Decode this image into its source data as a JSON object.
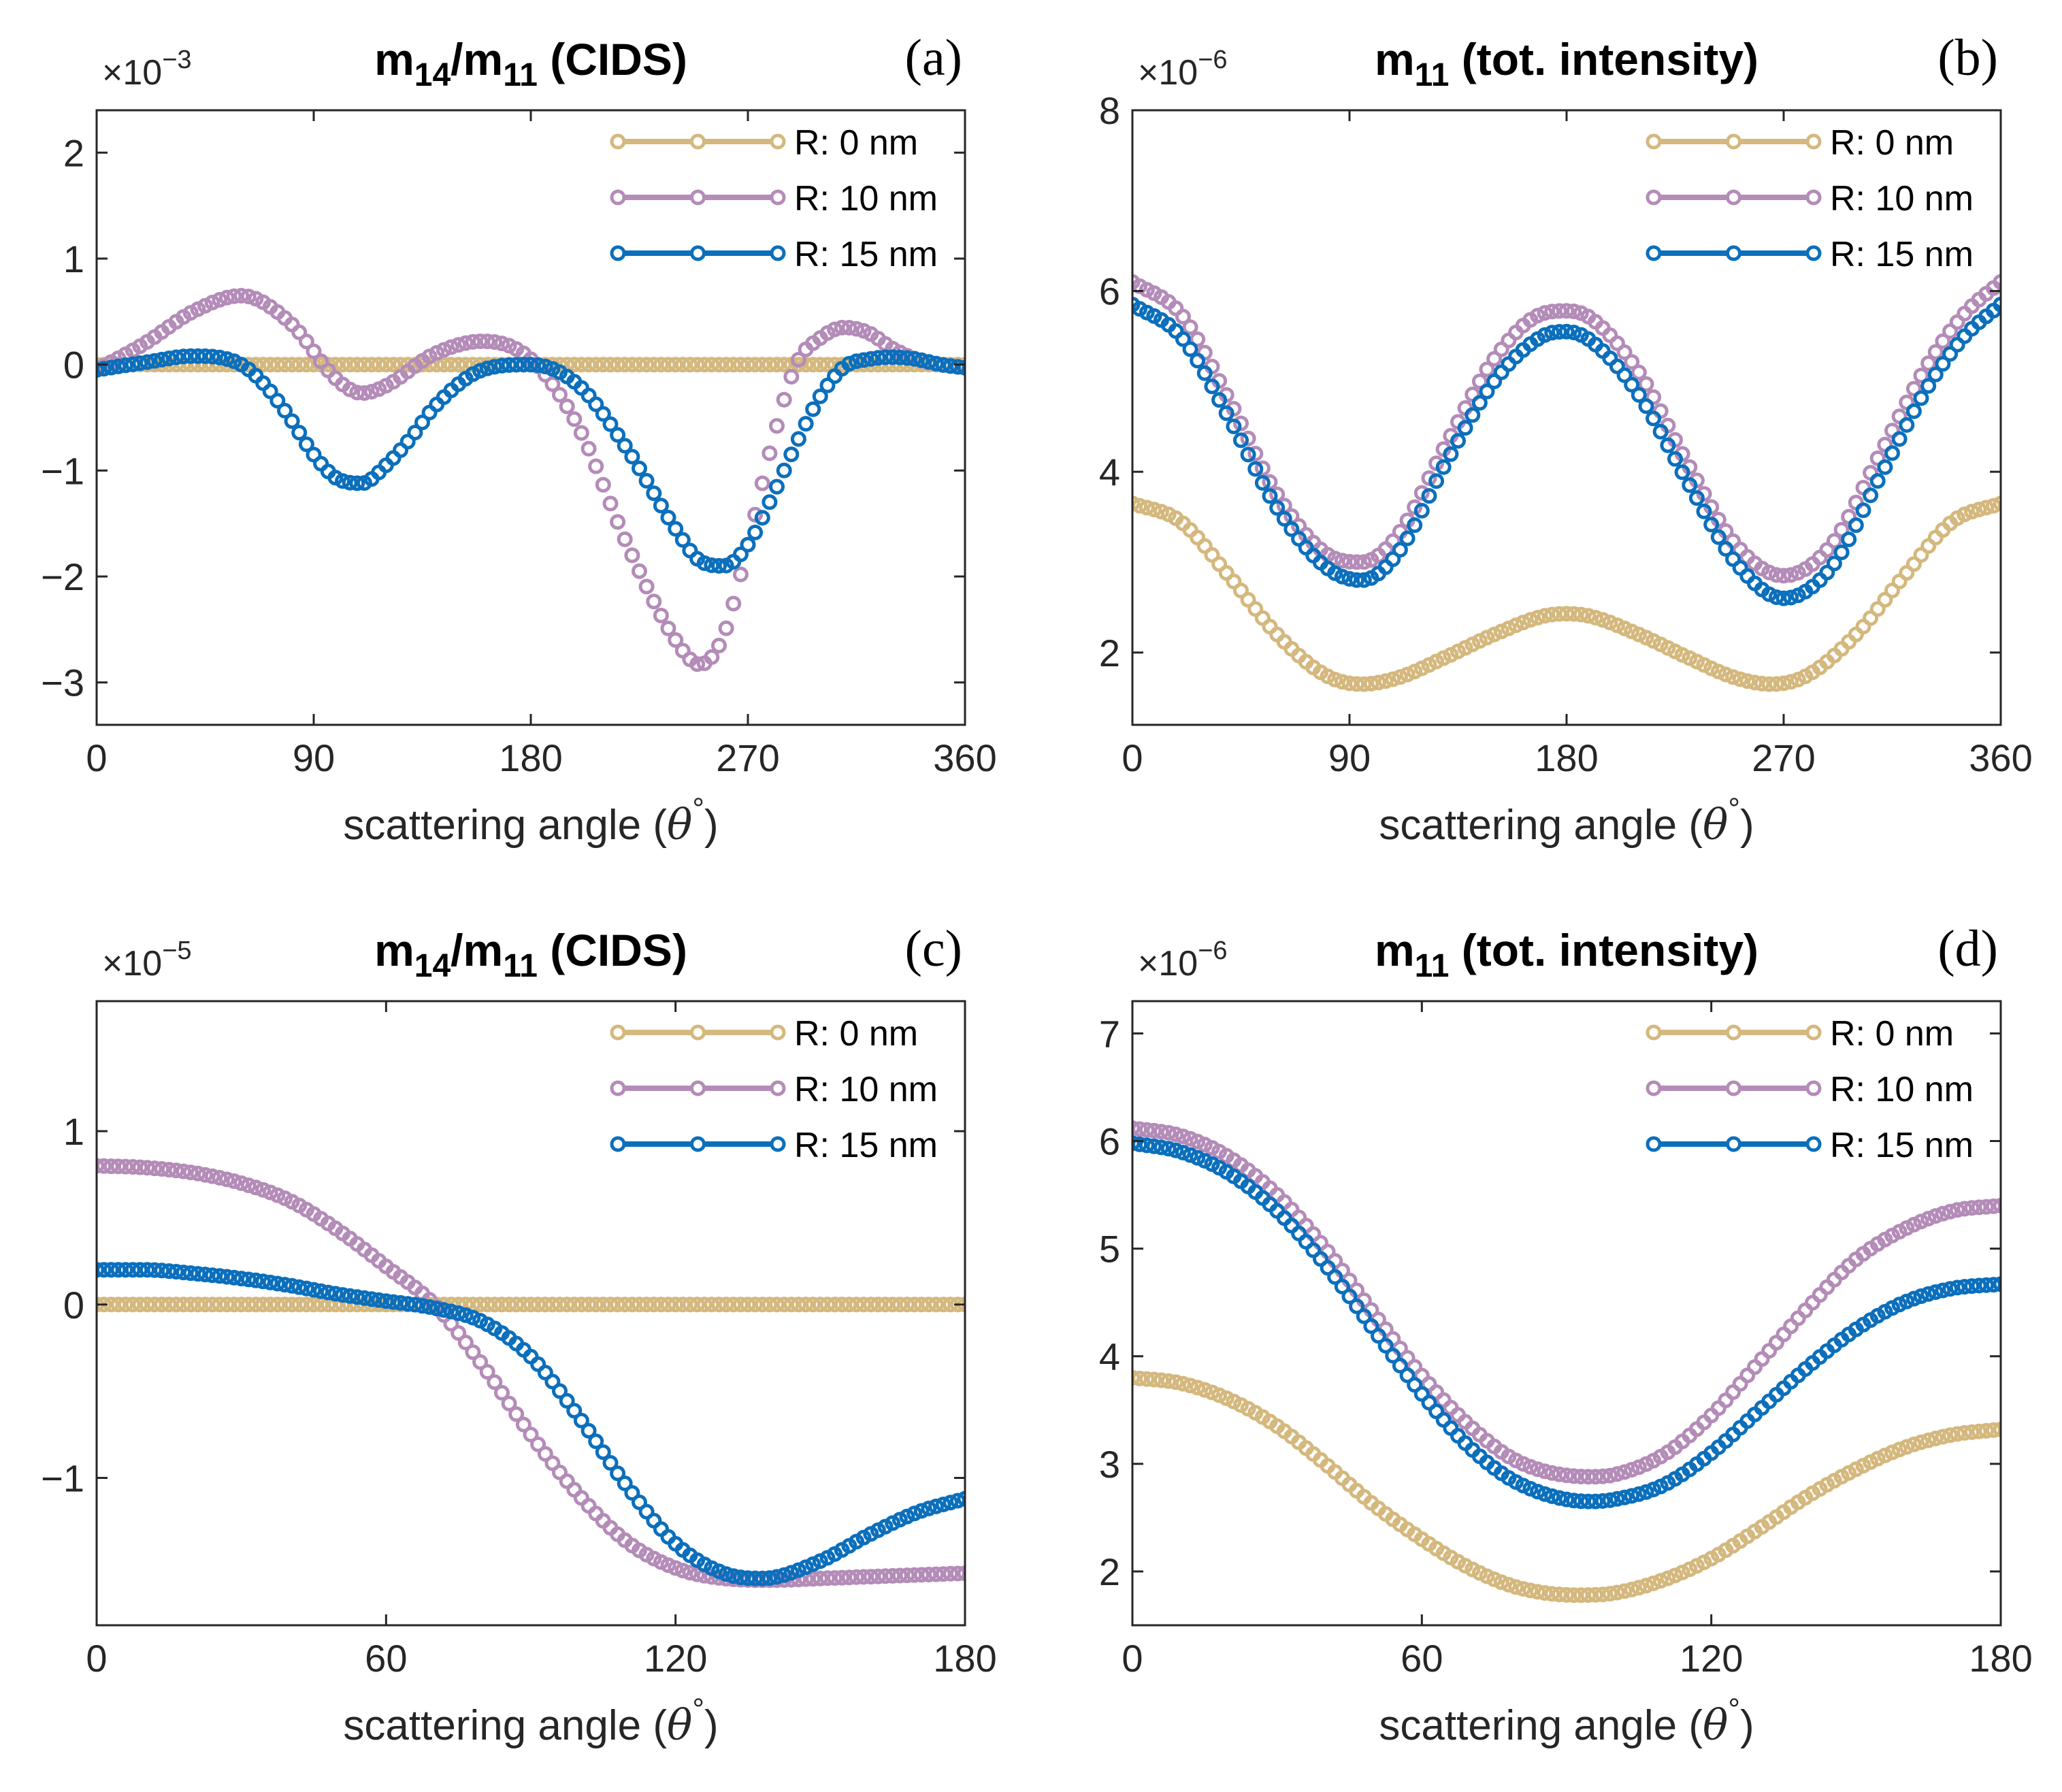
{
  "chart_data": [
    {
      "type": "line",
      "panel_label": "(a)",
      "title": {
        "base": "m",
        "sub1": "14",
        "mid": "/m",
        "sub2": "11",
        "suffix": " (CIDS)"
      },
      "xlabel": {
        "text": "scattering angle (",
        "symbol": "θ",
        "degree": "°",
        "close": ")"
      },
      "ylabel": "",
      "exponent": {
        "times": "×10",
        "power": "−3"
      },
      "xlim": [
        0,
        360
      ],
      "ylim": [
        -3.4,
        2.4
      ],
      "xticks": [
        0,
        90,
        180,
        270,
        360
      ],
      "xtick_labels": [
        "0",
        "90",
        "180",
        "270",
        "360"
      ],
      "yticks": [
        -3,
        -2,
        -1,
        0,
        1,
        2
      ],
      "ytick_labels": [
        "−3",
        "−2",
        "−1",
        "0",
        "1",
        "2"
      ],
      "marker_count": 121,
      "legend": {
        "position": "top-right"
      },
      "series": [
        {
          "name": "R: 0 nm",
          "color": "#d4b87e",
          "x": [
            0,
            360
          ],
          "y": [
            0,
            0
          ]
        },
        {
          "name": "R: 10 nm",
          "color": "#b48cb8",
          "x": [
            0,
            20,
            40,
            60,
            80,
            100,
            110,
            120,
            140,
            160,
            180,
            200,
            220,
            240,
            250,
            260,
            270,
            280,
            290,
            300,
            310,
            320,
            330,
            340,
            350,
            360
          ],
          "y": [
            -0.05,
            0.2,
            0.5,
            0.65,
            0.4,
            -0.15,
            -0.27,
            -0.2,
            0.1,
            0.22,
            0.05,
            -0.6,
            -1.7,
            -2.6,
            -2.83,
            -2.55,
            -1.7,
            -0.75,
            0.0,
            0.25,
            0.35,
            0.3,
            0.15,
            0.05,
            0.0,
            -0.03
          ]
        },
        {
          "name": "R: 15 nm",
          "color": "#0b6fbc",
          "x": [
            0,
            20,
            40,
            60,
            70,
            80,
            90,
            100,
            110,
            120,
            130,
            140,
            160,
            180,
            200,
            220,
            240,
            250,
            260,
            270,
            280,
            290,
            300,
            310,
            320,
            330,
            340,
            350,
            360
          ],
          "y": [
            -0.05,
            0.02,
            0.08,
            0.0,
            -0.2,
            -0.5,
            -0.85,
            -1.08,
            -1.12,
            -0.95,
            -0.7,
            -0.4,
            -0.05,
            0.0,
            -0.2,
            -0.8,
            -1.55,
            -1.85,
            -1.9,
            -1.7,
            -1.25,
            -0.75,
            -0.3,
            -0.02,
            0.05,
            0.07,
            0.05,
            0.0,
            -0.03
          ]
        }
      ]
    },
    {
      "type": "line",
      "panel_label": "(b)",
      "title": {
        "base": "m",
        "sub1": "11",
        "mid": "",
        "sub2": "",
        "suffix": " (tot. intensity)"
      },
      "xlabel": {
        "text": "scattering angle (",
        "symbol": "θ",
        "degree": "°",
        "close": ")"
      },
      "ylabel": "",
      "exponent": {
        "times": "×10",
        "power": "−6"
      },
      "xlim": [
        0,
        360
      ],
      "ylim": [
        1.2,
        8.0
      ],
      "xticks": [
        0,
        90,
        180,
        270,
        360
      ],
      "xtick_labels": [
        "0",
        "90",
        "180",
        "270",
        "360"
      ],
      "yticks": [
        2,
        4,
        6,
        8
      ],
      "ytick_labels": [
        "2",
        "4",
        "6",
        "8"
      ],
      "marker_count": 121,
      "legend": {
        "position": "top-right"
      },
      "series": [
        {
          "name": "R: 0 nm",
          "color": "#d4b87e",
          "x": [
            0,
            20,
            40,
            60,
            80,
            95,
            110,
            130,
            150,
            170,
            180,
            190,
            210,
            230,
            250,
            265,
            280,
            300,
            320,
            340,
            360
          ],
          "y": [
            3.65,
            3.45,
            2.85,
            2.2,
            1.75,
            1.65,
            1.72,
            1.95,
            2.2,
            2.4,
            2.43,
            2.4,
            2.2,
            1.95,
            1.72,
            1.65,
            1.75,
            2.2,
            2.85,
            3.45,
            3.65
          ]
        },
        {
          "name": "R: 10 nm",
          "color": "#b48cb8",
          "x": [
            0,
            20,
            40,
            60,
            80,
            95,
            110,
            130,
            150,
            170,
            180,
            190,
            210,
            230,
            250,
            270,
            290,
            310,
            330,
            345,
            360
          ],
          "y": [
            6.1,
            5.75,
            4.8,
            3.75,
            3.1,
            3.0,
            3.3,
            4.3,
            5.25,
            5.75,
            5.78,
            5.7,
            5.1,
            4.1,
            3.2,
            2.85,
            3.2,
            4.2,
            5.2,
            5.75,
            6.1
          ]
        },
        {
          "name": "R: 15 nm",
          "color": "#0b6fbc",
          "x": [
            0,
            20,
            40,
            60,
            80,
            95,
            110,
            130,
            150,
            170,
            180,
            190,
            210,
            230,
            250,
            270,
            290,
            310,
            330,
            345,
            360
          ],
          "y": [
            5.85,
            5.5,
            4.6,
            3.6,
            2.95,
            2.8,
            3.1,
            4.1,
            5.0,
            5.5,
            5.55,
            5.45,
            4.85,
            3.9,
            3.0,
            2.6,
            2.95,
            3.95,
            4.95,
            5.5,
            5.85
          ]
        }
      ]
    },
    {
      "type": "line",
      "panel_label": "(c)",
      "title": {
        "base": "m",
        "sub1": "14",
        "mid": "/m",
        "sub2": "11",
        "suffix": " (CIDS)"
      },
      "xlabel": {
        "text": "scattering angle (",
        "symbol": "θ",
        "degree": "°",
        "close": ")"
      },
      "ylabel": "",
      "exponent": {
        "times": "×10",
        "power": "−5"
      },
      "xlim": [
        0,
        180
      ],
      "ylim": [
        -1.85,
        1.75
      ],
      "xticks": [
        0,
        60,
        120,
        180
      ],
      "xtick_labels": [
        "0",
        "60",
        "120",
        "180"
      ],
      "yticks": [
        -1,
        0,
        1
      ],
      "ytick_labels": [
        "−1",
        "0",
        "1"
      ],
      "marker_count": 121,
      "legend": {
        "position": "top-right"
      },
      "series": [
        {
          "name": "R: 0 nm",
          "color": "#d4b87e",
          "x": [
            0,
            180
          ],
          "y": [
            0,
            0
          ]
        },
        {
          "name": "R: 10 nm",
          "color": "#b48cb8",
          "x": [
            0,
            10,
            20,
            30,
            40,
            50,
            60,
            70,
            80,
            90,
            100,
            110,
            120,
            130,
            140,
            150,
            160,
            170,
            180
          ],
          "y": [
            0.8,
            0.79,
            0.76,
            0.7,
            0.6,
            0.43,
            0.22,
            0.0,
            -0.35,
            -0.75,
            -1.1,
            -1.37,
            -1.52,
            -1.58,
            -1.59,
            -1.58,
            -1.57,
            -1.56,
            -1.55
          ]
        },
        {
          "name": "R: 15 nm",
          "color": "#0b6fbc",
          "x": [
            0,
            10,
            20,
            30,
            40,
            50,
            60,
            70,
            80,
            90,
            100,
            110,
            120,
            130,
            138,
            150,
            160,
            170,
            180
          ],
          "y": [
            0.2,
            0.2,
            0.18,
            0.15,
            0.11,
            0.06,
            0.02,
            -0.02,
            -0.1,
            -0.3,
            -0.65,
            -1.05,
            -1.38,
            -1.55,
            -1.58,
            -1.48,
            -1.33,
            -1.2,
            -1.12
          ]
        }
      ]
    },
    {
      "type": "line",
      "panel_label": "(d)",
      "title": {
        "base": "m",
        "sub1": "11",
        "mid": "",
        "sub2": "",
        "suffix": " (tot. intensity)"
      },
      "xlabel": {
        "text": "scattering angle (",
        "symbol": "θ",
        "degree": "°",
        "close": ")"
      },
      "ylabel": "",
      "exponent": {
        "times": "×10",
        "power": "−6"
      },
      "xlim": [
        0,
        180
      ],
      "ylim": [
        1.5,
        7.3
      ],
      "xticks": [
        0,
        60,
        120,
        180
      ],
      "xtick_labels": [
        "0",
        "60",
        "120",
        "180"
      ],
      "yticks": [
        2,
        3,
        4,
        5,
        6,
        7
      ],
      "ytick_labels": [
        "2",
        "3",
        "4",
        "5",
        "6",
        "7"
      ],
      "marker_count": 121,
      "legend": {
        "position": "top-right"
      },
      "series": [
        {
          "name": "R: 0 nm",
          "color": "#d4b87e",
          "x": [
            0,
            10,
            20,
            30,
            40,
            50,
            60,
            70,
            80,
            92,
            100,
            110,
            120,
            130,
            140,
            150,
            160,
            170,
            180
          ],
          "y": [
            3.8,
            3.75,
            3.6,
            3.35,
            3.0,
            2.62,
            2.3,
            2.03,
            1.85,
            1.78,
            1.8,
            1.92,
            2.12,
            2.4,
            2.7,
            2.95,
            3.15,
            3.27,
            3.32
          ]
        },
        {
          "name": "R: 10 nm",
          "color": "#b48cb8",
          "x": [
            0,
            10,
            20,
            30,
            40,
            50,
            60,
            70,
            80,
            95,
            100,
            110,
            120,
            130,
            140,
            150,
            160,
            170,
            180
          ],
          "y": [
            6.12,
            6.05,
            5.85,
            5.5,
            5.0,
            4.4,
            3.82,
            3.35,
            3.02,
            2.88,
            2.9,
            3.08,
            3.45,
            3.95,
            4.45,
            4.9,
            5.18,
            5.35,
            5.4
          ]
        },
        {
          "name": "R: 15 nm",
          "color": "#0b6fbc",
          "x": [
            0,
            10,
            20,
            30,
            40,
            50,
            60,
            70,
            80,
            95,
            100,
            110,
            120,
            130,
            140,
            150,
            160,
            170,
            180
          ],
          "y": [
            5.98,
            5.9,
            5.7,
            5.35,
            4.85,
            4.25,
            3.65,
            3.15,
            2.82,
            2.65,
            2.67,
            2.8,
            3.1,
            3.5,
            3.9,
            4.25,
            4.5,
            4.63,
            4.67
          ]
        }
      ]
    }
  ]
}
